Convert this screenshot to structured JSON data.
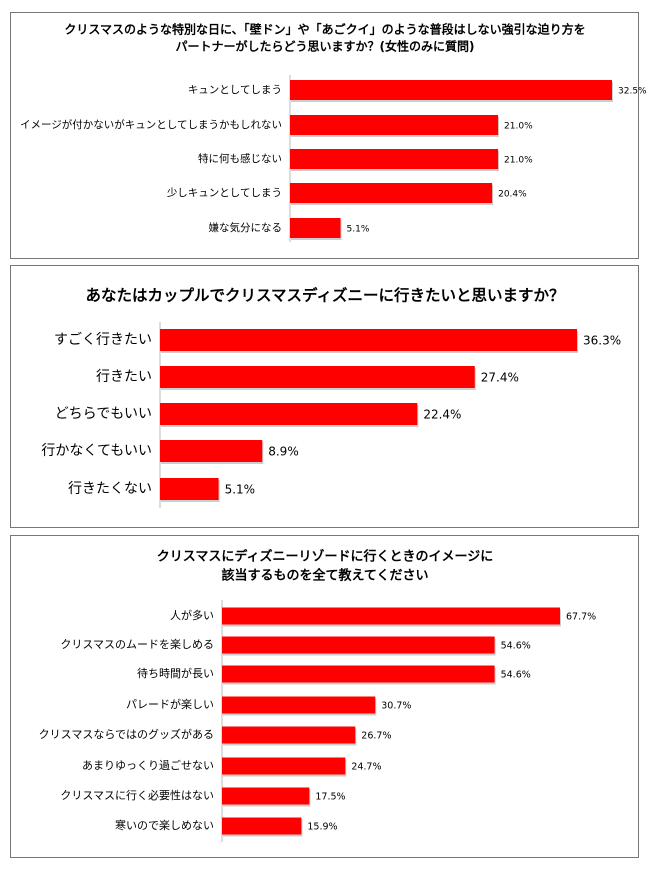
{
  "chart_data": [
    {
      "type": "bar",
      "orientation": "horizontal",
      "color": "#ff0000",
      "title": [
        "クリスマスのような特別な日に、「壁ドン」や「あごクイ」のような普段はしない強引な迫り方を",
        "パートナーがしたらどう思いますか？(女性のみに質問)"
      ],
      "categories": [
        "キュンとしてしまう",
        "イメージが付かないがキュンとしてしまうかもしれない",
        "特に何も感じない",
        "少しキュンとしてしまう",
        "嫌な気分になる"
      ],
      "values": [
        32.5,
        21.0,
        21.0,
        20.4,
        5.1
      ],
      "value_labels": [
        "32.5%",
        "21.0%",
        "21.0%",
        "20.4%",
        "5.1%"
      ]
    },
    {
      "type": "bar",
      "orientation": "horizontal",
      "color": "#ff0000",
      "title": [
        "あなたはカップルでクリスマスディズニーに行きたいと思いますか？"
      ],
      "categories": [
        "すごく行きたい",
        "行きたい",
        "どちらでもいい",
        "行かなくてもいい",
        "行きたくない"
      ],
      "values": [
        36.3,
        27.4,
        22.4,
        8.9,
        5.1
      ],
      "value_labels": [
        "36.3%",
        "27.4%",
        "22.4%",
        "8.9%",
        "5.1%"
      ]
    },
    {
      "type": "bar",
      "orientation": "horizontal",
      "color": "#ff0000",
      "title": [
        "クリスマスにディズニーリゾードに行くときのイメージに",
        "該当するものを全て教えてください"
      ],
      "categories": [
        "人が多い",
        "クリスマスのムードを楽しめる",
        "待ち時間が長い",
        "パレードが楽しい",
        "クリスマスならではのグッズがある",
        "あまりゆっくり過ごせない",
        "クリスマスに行く必要性はない",
        "寒いので楽しめない"
      ],
      "values": [
        67.7,
        54.6,
        54.6,
        30.7,
        26.7,
        24.7,
        17.5,
        15.9
      ],
      "value_labels": [
        "67.7%",
        "54.6%",
        "54.6%",
        "30.7%",
        "26.7%",
        "24.7%",
        "17.5%",
        "15.9%"
      ]
    }
  ]
}
